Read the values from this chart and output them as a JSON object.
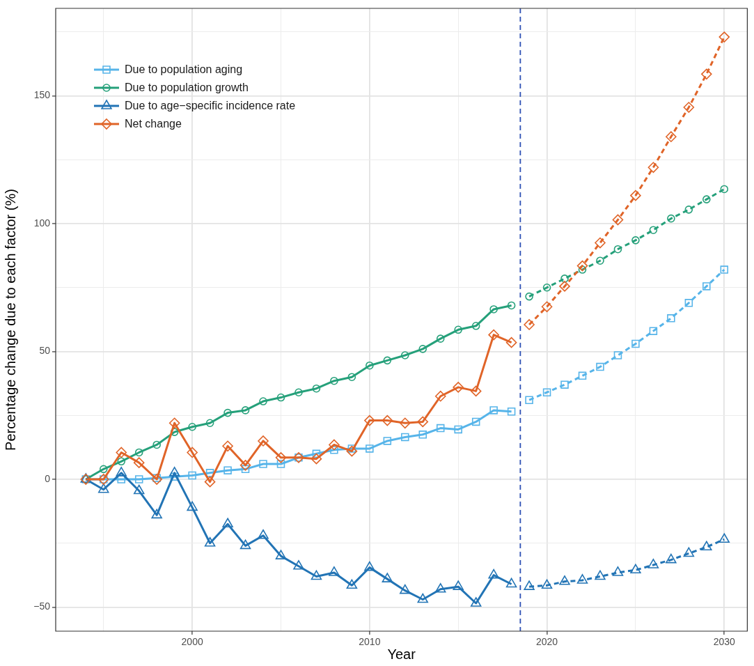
{
  "chart_data": {
    "type": "line",
    "xlabel": "Year",
    "ylabel": "Percentage change due to each factor (%)",
    "xlim": [
      1992.3,
      2031.3
    ],
    "xticks": [
      {
        "value": 1995,
        "label": null
      },
      2000,
      {
        "value": 2005,
        "label": null
      },
      2010,
      {
        "value": 2015,
        "label": null
      },
      2020,
      {
        "value": 2025,
        "label": null
      },
      2030
    ],
    "ylim": [
      -59.4,
      184.2
    ],
    "yticks": [
      {
        "value": -50,
        "label": "−50"
      },
      {
        "value": -25,
        "label": null
      },
      0,
      {
        "value": 25,
        "label": null
      },
      50,
      {
        "value": 75,
        "label": null
      },
      100,
      {
        "value": 125,
        "label": null
      },
      150,
      {
        "value": 175,
        "label": null
      }
    ],
    "grid": true,
    "legend": "top left",
    "ref_lines": [
      {
        "axis": "x",
        "value": 2018.5,
        "color": "#2d50b4",
        "line_style": "dashed"
      }
    ],
    "series": [
      {
        "name": "Due to population aging",
        "color": "#56b4e9",
        "marker": "square",
        "line_style": "solid",
        "x": [
          1994,
          1995,
          1996,
          1997,
          1998,
          1999,
          2000,
          2001,
          2002,
          2003,
          2004,
          2005,
          2006,
          2007,
          2008,
          2009,
          2010,
          2011,
          2012,
          2013,
          2014,
          2015,
          2016,
          2017,
          2018
        ],
        "values": [
          0,
          0,
          0,
          0,
          0.5,
          1,
          1.5,
          2.5,
          3.5,
          4,
          6,
          6,
          8.5,
          10,
          11.5,
          12,
          12,
          15,
          16.5,
          17.5,
          20,
          19.5,
          22.5,
          27,
          26.5
        ]
      },
      {
        "name": "Due to population growth",
        "color": "#25a07a",
        "marker": "circle",
        "line_style": "solid",
        "x": [
          1994,
          1995,
          1996,
          1997,
          1998,
          1999,
          2000,
          2001,
          2002,
          2003,
          2004,
          2005,
          2006,
          2007,
          2008,
          2009,
          2010,
          2011,
          2012,
          2013,
          2014,
          2015,
          2016,
          2017,
          2018
        ],
        "values": [
          0,
          4,
          7,
          10.5,
          13.5,
          18.5,
          20.5,
          22,
          26,
          27,
          30.5,
          32,
          34,
          35.5,
          38.5,
          40,
          44.5,
          46.5,
          48.5,
          51,
          55,
          58.5,
          60,
          66.5,
          68
        ]
      },
      {
        "name": "Due to age−specific incidence rate",
        "color": "#2274b5",
        "marker": "triangle",
        "line_style": "solid",
        "x": [
          1994,
          1995,
          1996,
          1997,
          1998,
          1999,
          2000,
          2001,
          2002,
          2003,
          2004,
          2005,
          2006,
          2007,
          2008,
          2009,
          2010,
          2011,
          2012,
          2013,
          2014,
          2015,
          2016,
          2017,
          2018
        ],
        "values": [
          0,
          -4,
          2.5,
          -4.5,
          -14,
          2.5,
          -11,
          -25,
          -17.5,
          -26,
          -22,
          -30,
          -34,
          -38,
          -36.5,
          -41.5,
          -34.5,
          -39,
          -43.5,
          -47,
          -43,
          -42,
          -48.5,
          -37.5,
          -41
        ]
      },
      {
        "name": "Net change",
        "color": "#e06428",
        "marker": "diamond",
        "line_style": "solid",
        "x": [
          1994,
          1995,
          1996,
          1997,
          1998,
          1999,
          2000,
          2001,
          2002,
          2003,
          2004,
          2005,
          2006,
          2007,
          2008,
          2009,
          2010,
          2011,
          2012,
          2013,
          2014,
          2015,
          2016,
          2017,
          2018
        ],
        "values": [
          0,
          0,
          10.5,
          6.5,
          0,
          22,
          10.5,
          -1,
          13,
          5.5,
          15,
          8.5,
          8.5,
          8,
          13.5,
          11,
          23,
          23,
          22,
          22.5,
          32.5,
          36,
          34.5,
          56.5,
          53.5
        ]
      },
      {
        "color": "#56b4e9",
        "marker": "square",
        "line_style": "dashed",
        "x": [
          2019,
          2020,
          2021,
          2022,
          2023,
          2024,
          2025,
          2026,
          2027,
          2028,
          2029,
          2030
        ],
        "values": [
          31,
          34,
          37,
          40.5,
          44,
          48.5,
          53,
          58,
          63,
          69,
          75.5,
          82
        ]
      },
      {
        "color": "#25a07a",
        "marker": "circle",
        "line_style": "dashed",
        "x": [
          2019,
          2020,
          2021,
          2022,
          2023,
          2024,
          2025,
          2026,
          2027,
          2028,
          2029,
          2030
        ],
        "values": [
          71.5,
          75,
          78.5,
          82,
          85.5,
          90,
          93.5,
          97.5,
          102,
          105.5,
          109.5,
          113.5
        ]
      },
      {
        "color": "#2274b5",
        "marker": "triangle",
        "line_style": "dashed",
        "x": [
          2019,
          2020,
          2021,
          2022,
          2023,
          2024,
          2025,
          2026,
          2027,
          2028,
          2029,
          2030
        ],
        "values": [
          -42,
          -41.5,
          -40,
          -39.5,
          -38,
          -36.5,
          -35.5,
          -33.5,
          -31.5,
          -29,
          -26.5,
          -23.5
        ]
      },
      {
        "color": "#e06428",
        "marker": "diamond",
        "line_style": "dashed",
        "x": [
          2019,
          2020,
          2021,
          2022,
          2023,
          2024,
          2025,
          2026,
          2027,
          2028,
          2029,
          2030
        ],
        "values": [
          60.5,
          67.5,
          75.5,
          83.5,
          92.5,
          101.5,
          111,
          122,
          134,
          145.5,
          158.5,
          173
        ]
      }
    ]
  }
}
